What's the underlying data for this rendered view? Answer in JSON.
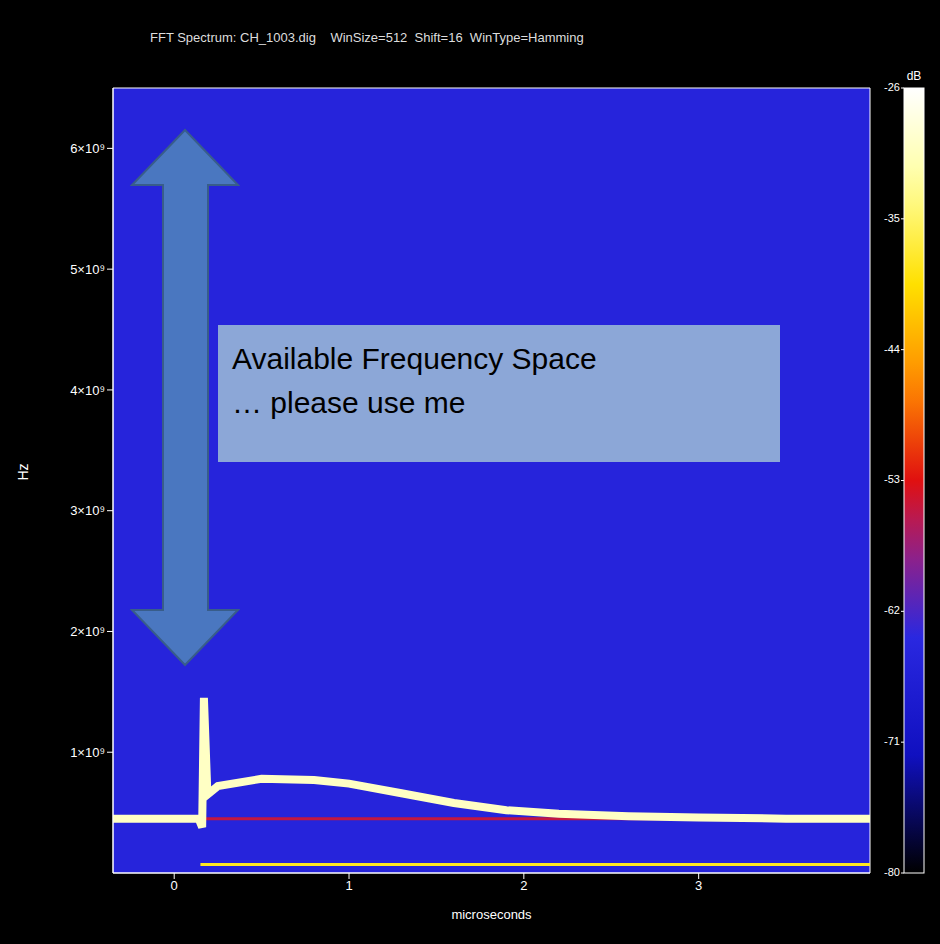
{
  "chart_data": {
    "type": "spectrogram",
    "title": "FFT Spectrum: CH_1003.dig    WinSize=512  Shift=16  WinType=Hamming",
    "xlabel": "microseconds",
    "ylabel": "Hz",
    "xlim": [
      -0.35,
      3.98
    ],
    "xticks": [
      0,
      1,
      2,
      3
    ],
    "ylim": [
      0,
      6500000000
    ],
    "yticks": [
      {
        "value": 1000000000,
        "label": "1×10⁹"
      },
      {
        "value": 2000000000,
        "label": "2×10⁹"
      },
      {
        "value": 3000000000,
        "label": "3×10⁹"
      },
      {
        "value": 4000000000,
        "label": "4×10⁹"
      },
      {
        "value": 5000000000,
        "label": "5×10⁹"
      },
      {
        "value": 6000000000,
        "label": "6×10⁹"
      }
    ],
    "background_level": -65,
    "series": [
      {
        "x": [
          0.15,
          3.98
        ],
        "values": [
          450000000,
          450000000
        ],
        "level": -55
      },
      {
        "x": [
          0.15,
          3.98
        ],
        "values": [
          70000000,
          70000000
        ],
        "level": -38
      },
      {
        "x": [
          -0.35,
          0.14,
          0.16,
          0.17,
          0.19,
          0.25,
          0.5,
          0.8,
          1.0,
          1.3,
          1.6,
          1.9,
          2.2,
          2.6,
          3.0,
          3.5,
          3.98
        ],
        "values": [
          450000000,
          450000000,
          380000000,
          1450000000,
          650000000,
          720000000,
          780000000,
          770000000,
          740000000,
          660000000,
          580000000,
          520000000,
          490000000,
          470000000,
          460000000,
          450000000,
          450000000
        ],
        "level": -30
      }
    ],
    "colorbar": {
      "range": [
        -80,
        -26
      ],
      "ticks": [
        -80,
        -71,
        -62,
        -53,
        -44,
        -35,
        -26
      ],
      "label": "dB"
    },
    "annotation": [
      "Available Frequency Space",
      "… please use me"
    ]
  }
}
